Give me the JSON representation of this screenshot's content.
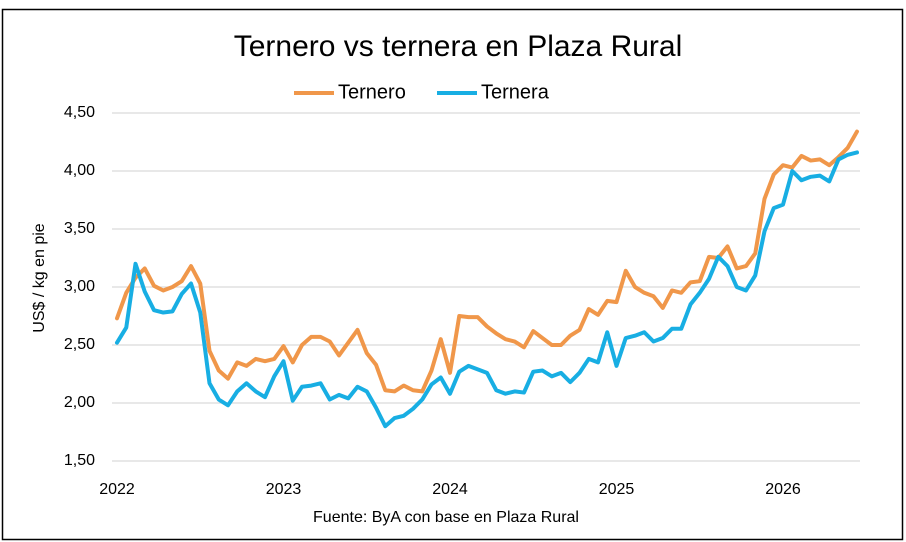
{
  "chart_data": {
    "type": "line",
    "title": "Ternero vs ternera en Plaza Rural",
    "y_label": "US$ / kg en pie",
    "source": "Fuente: ByA con base en Plaza Rural",
    "legend_position": "top",
    "grid": true,
    "categories": [
      "2022",
      null,
      null,
      null,
      null,
      null,
      null,
      null,
      null,
      null,
      null,
      null,
      null,
      null,
      null,
      null,
      null,
      null,
      "2023",
      null,
      null,
      null,
      null,
      null,
      null,
      null,
      null,
      null,
      null,
      null,
      null,
      null,
      null,
      null,
      null,
      null,
      "2024",
      null,
      null,
      null,
      null,
      null,
      null,
      null,
      null,
      null,
      null,
      null,
      null,
      null,
      null,
      null,
      null,
      null,
      "2025",
      null,
      null,
      null,
      null,
      null,
      null,
      null,
      null,
      null,
      null,
      null,
      null,
      null,
      null,
      null,
      null,
      null,
      "2026",
      null,
      null,
      null,
      null,
      null,
      null,
      null,
      null
    ],
    "ylim": [
      1.5,
      4.5
    ],
    "yticks": [
      {
        "value": 1.5,
        "label": "1,50"
      },
      {
        "value": 2,
        "label": "2,00"
      },
      {
        "value": 2.5,
        "label": "2,50"
      },
      {
        "value": 3,
        "label": "3,00"
      },
      {
        "value": 3.5,
        "label": "3,50"
      },
      {
        "value": 4,
        "label": "4,00"
      },
      {
        "value": 4.5,
        "label": "4,50"
      }
    ],
    "series": [
      {
        "name": "Ternero",
        "color": "#f0974a",
        "values": [
          2.73,
          2.95,
          3.08,
          3.16,
          3.01,
          2.97,
          3.0,
          3.05,
          3.18,
          3.03,
          2.45,
          2.28,
          2.21,
          2.35,
          2.32,
          2.38,
          2.36,
          2.38,
          2.49,
          2.35,
          2.5,
          2.57,
          2.57,
          2.53,
          2.41,
          2.52,
          2.63,
          2.43,
          2.33,
          2.11,
          2.1,
          2.15,
          2.11,
          2.1,
          2.28,
          2.55,
          2.26,
          2.75,
          2.74,
          2.74,
          2.66,
          2.6,
          2.55,
          2.53,
          2.48,
          2.62,
          2.56,
          2.5,
          2.5,
          2.58,
          2.63,
          2.81,
          2.76,
          2.88,
          2.87,
          3.14,
          3.0,
          2.95,
          2.92,
          2.82,
          2.97,
          2.95,
          3.04,
          3.05,
          3.26,
          3.25,
          3.35,
          3.16,
          3.18,
          3.29,
          3.76,
          3.97,
          4.05,
          4.03,
          4.13,
          4.09,
          4.1,
          4.05,
          4.12,
          4.2,
          4.34
        ]
      },
      {
        "name": "Ternera",
        "color": "#18aee3",
        "values": [
          2.52,
          2.65,
          3.2,
          2.96,
          2.8,
          2.78,
          2.79,
          2.94,
          3.03,
          2.78,
          2.17,
          2.03,
          1.98,
          2.1,
          2.17,
          2.1,
          2.05,
          2.23,
          2.36,
          2.02,
          2.14,
          2.15,
          2.17,
          2.03,
          2.07,
          2.04,
          2.14,
          2.1,
          1.96,
          1.8,
          1.87,
          1.89,
          1.95,
          2.03,
          2.16,
          2.22,
          2.08,
          2.27,
          2.32,
          2.29,
          2.26,
          2.11,
          2.08,
          2.1,
          2.09,
          2.27,
          2.28,
          2.23,
          2.26,
          2.18,
          2.26,
          2.38,
          2.35,
          2.61,
          2.32,
          2.56,
          2.58,
          2.61,
          2.53,
          2.56,
          2.64,
          2.64,
          2.85,
          2.95,
          3.07,
          3.26,
          3.18,
          3.0,
          2.97,
          3.1,
          3.48,
          3.68,
          3.71,
          4.0,
          3.92,
          3.95,
          3.96,
          3.91,
          4.1,
          4.14,
          4.16
        ]
      }
    ]
  }
}
